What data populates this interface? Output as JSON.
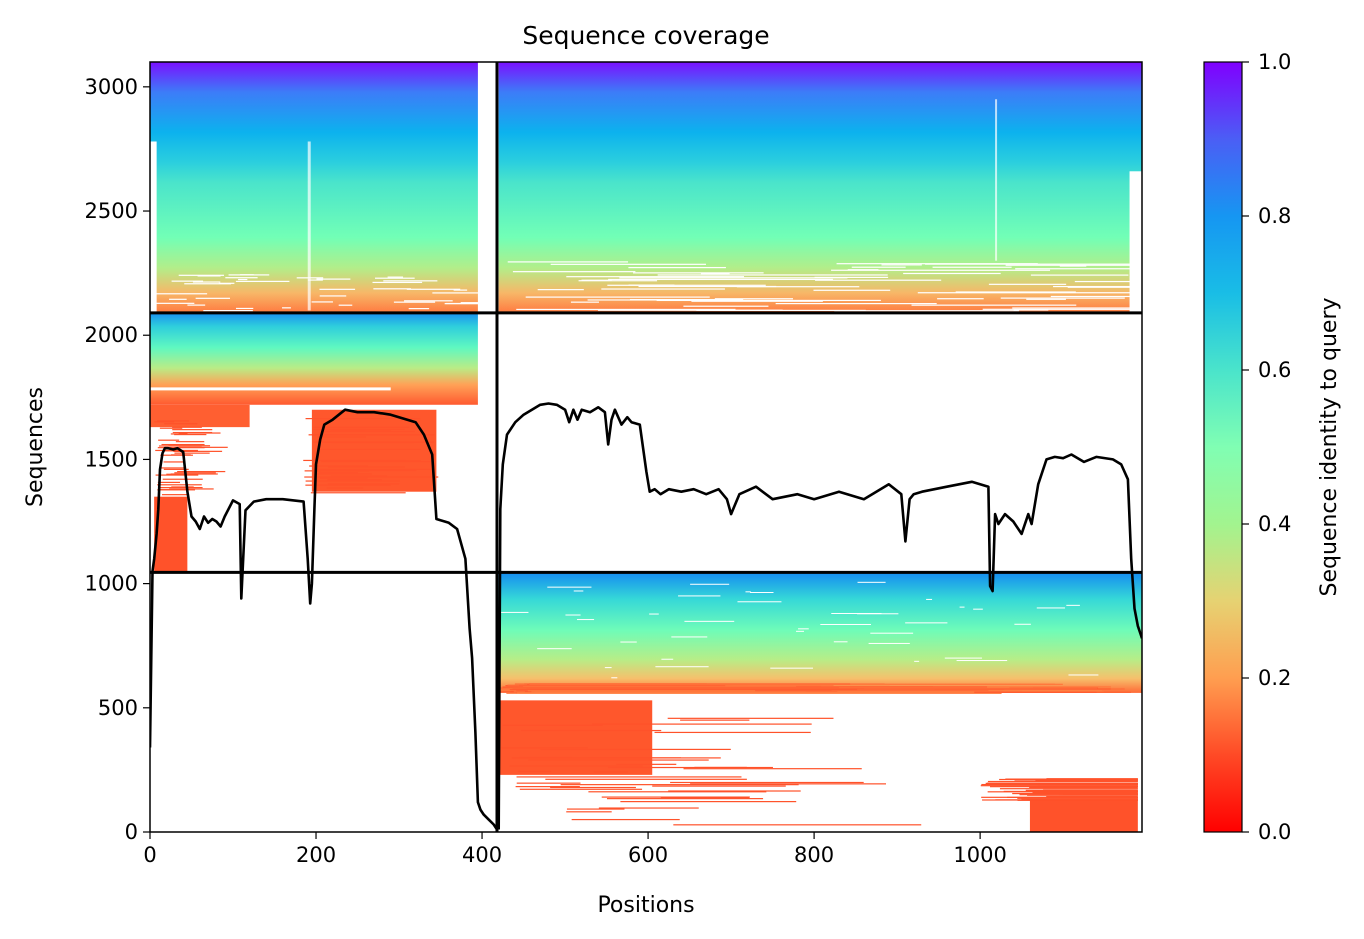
{
  "chart_data": {
    "type": "heatmap",
    "title": "Sequence coverage",
    "xlabel": "Positions",
    "ylabel": "Sequences",
    "xlim": [
      0,
      1195
    ],
    "ylim": [
      0,
      3100
    ],
    "x_ticks": [
      0,
      200,
      400,
      600,
      800,
      1000
    ],
    "y_ticks": [
      0,
      500,
      1000,
      1500,
      2000,
      2500,
      3000
    ],
    "colorbar": {
      "label": "Sequence identity to query",
      "range": [
        0,
        1
      ],
      "ticks": [
        "0.0",
        "0.2",
        "0.4",
        "0.6",
        "0.8",
        "1.0"
      ],
      "colormap": "rainbow_r"
    },
    "grid": false,
    "domain_boundaries": {
      "x": [
        418
      ],
      "y": [
        1045,
        2090
      ]
    },
    "coverage_blocks": [
      {
        "x": [
          0,
          395
        ],
        "y": [
          2090,
          3100
        ],
        "identity": [
          0.15,
          1.0
        ]
      },
      {
        "x": [
          420,
          1195
        ],
        "y": [
          2090,
          3100
        ],
        "identity": [
          0.15,
          1.0
        ]
      },
      {
        "x": [
          0,
          395
        ],
        "y": [
          1720,
          2090
        ],
        "identity": [
          0.15,
          0.9
        ]
      },
      {
        "x": [
          0,
          120
        ],
        "y": [
          1630,
          1720
        ],
        "identity": [
          0.1,
          0.15
        ]
      },
      {
        "x": [
          195,
          345
        ],
        "y": [
          1370,
          1700
        ],
        "identity": [
          0.1,
          0.13
        ]
      },
      {
        "x": [
          5,
          45
        ],
        "y": [
          1045,
          1350
        ],
        "identity": [
          0.1,
          0.12
        ]
      },
      {
        "x": [
          420,
          1195
        ],
        "y": [
          560,
          1045
        ],
        "identity": [
          0.15,
          0.9
        ]
      },
      {
        "x": [
          420,
          605
        ],
        "y": [
          230,
          530
        ],
        "identity": [
          0.1,
          0.13
        ]
      },
      {
        "x": [
          1060,
          1190
        ],
        "y": [
          0,
          130
        ],
        "identity": [
          0.1,
          0.12
        ]
      }
    ],
    "series": [
      {
        "x": [
          0,
          3,
          5,
          8,
          10,
          12,
          15,
          18,
          22,
          28,
          33,
          40,
          45,
          50,
          55,
          60,
          65,
          70,
          75,
          80,
          85,
          90,
          100,
          108,
          110,
          115,
          125,
          140,
          160,
          185,
          190,
          193,
          195,
          198,
          200,
          205,
          210,
          220,
          235,
          250,
          270,
          290,
          310,
          320,
          330,
          340,
          345,
          350,
          355,
          360,
          370,
          380,
          385,
          388,
          392,
          395,
          398,
          402,
          408,
          414,
          418
        ],
        "y": [
          340,
          1050,
          1100,
          1200,
          1300,
          1460,
          1525,
          1545,
          1545,
          1540,
          1545,
          1530,
          1370,
          1270,
          1250,
          1220,
          1270,
          1245,
          1260,
          1250,
          1230,
          1270,
          1335,
          1320,
          940,
          1295,
          1330,
          1340,
          1340,
          1330,
          1100,
          920,
          1000,
          1300,
          1480,
          1580,
          1640,
          1660,
          1700,
          1690,
          1690,
          1680,
          1660,
          1650,
          1600,
          1520,
          1260,
          1255,
          1250,
          1245,
          1220,
          1100,
          820,
          700,
          400,
          120,
          90,
          70,
          50,
          30,
          10
        ]
      },
      {
        "x": [
          420,
          422,
          425,
          430,
          440,
          450,
          460,
          470,
          480,
          490,
          500,
          505,
          510,
          515,
          520,
          530,
          540,
          548,
          552,
          556,
          560,
          568,
          575,
          580,
          590,
          598,
          602,
          608,
          615,
          625,
          640,
          655,
          670,
          685,
          695,
          700,
          710,
          730,
          750,
          780,
          800,
          830,
          860,
          880,
          890,
          905,
          910,
          915,
          920,
          930,
          960,
          990,
          1000,
          1010,
          1012,
          1015,
          1018,
          1022,
          1030,
          1040,
          1050,
          1058,
          1062,
          1070,
          1080,
          1090,
          1100,
          1110,
          1125,
          1140,
          1160,
          1170,
          1178,
          1182,
          1186,
          1190,
          1195
        ],
        "y": [
          10,
          1300,
          1480,
          1600,
          1650,
          1680,
          1700,
          1720,
          1725,
          1720,
          1700,
          1650,
          1700,
          1660,
          1700,
          1690,
          1710,
          1690,
          1560,
          1660,
          1700,
          1640,
          1670,
          1650,
          1640,
          1450,
          1370,
          1380,
          1360,
          1380,
          1370,
          1380,
          1360,
          1380,
          1340,
          1280,
          1360,
          1390,
          1340,
          1360,
          1340,
          1370,
          1340,
          1380,
          1400,
          1360,
          1170,
          1340,
          1360,
          1370,
          1390,
          1410,
          1400,
          1390,
          990,
          970,
          1280,
          1240,
          1280,
          1250,
          1200,
          1280,
          1240,
          1400,
          1500,
          1510,
          1505,
          1520,
          1490,
          1510,
          1500,
          1480,
          1420,
          1100,
          900,
          830,
          780
        ]
      }
    ]
  }
}
